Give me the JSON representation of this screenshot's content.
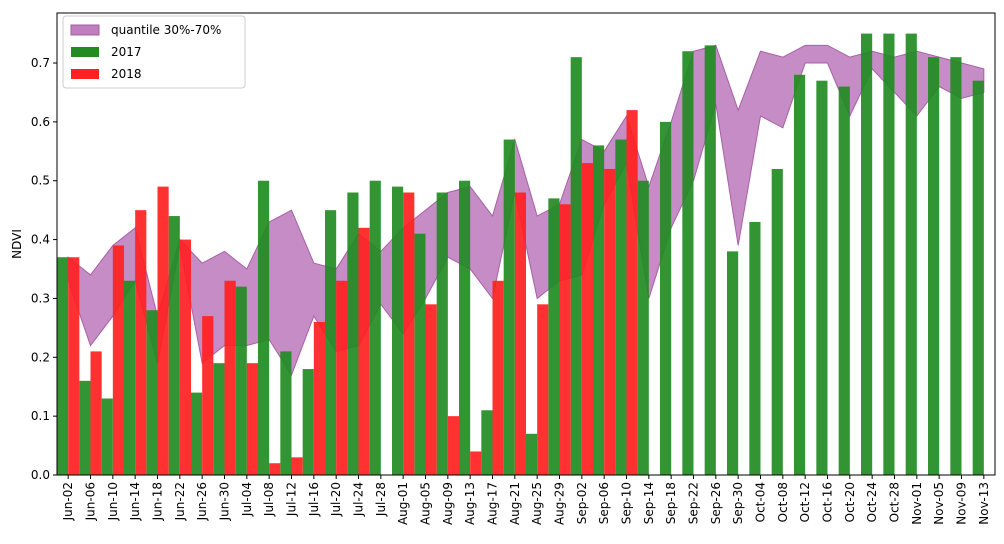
{
  "chart_data": {
    "type": "bar",
    "ylabel": "NDVI",
    "ylim": [
      0,
      0.785
    ],
    "yticks": [
      0.0,
      0.1,
      0.2,
      0.3,
      0.4,
      0.5,
      0.6,
      0.7
    ],
    "legend_position": "upper-left",
    "categories": [
      "Jun-02",
      "Jun-06",
      "Jun-10",
      "Jun-14",
      "Jun-18",
      "Jun-22",
      "Jun-26",
      "Jun-30",
      "Jul-04",
      "Jul-08",
      "Jul-12",
      "Jul-16",
      "Jul-20",
      "Jul-24",
      "Jul-28",
      "Aug-01",
      "Aug-05",
      "Aug-09",
      "Aug-13",
      "Aug-17",
      "Aug-21",
      "Aug-25",
      "Aug-29",
      "Sep-02",
      "Sep-06",
      "Sep-10",
      "Sep-14",
      "Sep-18",
      "Sep-22",
      "Sep-26",
      "Sep-30",
      "Oct-04",
      "Oct-08",
      "Oct-12",
      "Oct-16",
      "Oct-20",
      "Oct-24",
      "Oct-28",
      "Nov-01",
      "Nov-05",
      "Nov-09",
      "Nov-13"
    ],
    "band": {
      "name": "quantile 30%-70%",
      "color": "#bf7fbf",
      "lower": [
        0.33,
        0.22,
        0.27,
        0.33,
        0.19,
        0.39,
        0.19,
        0.22,
        0.22,
        0.23,
        0.17,
        0.27,
        0.21,
        0.22,
        0.29,
        0.24,
        0.3,
        0.37,
        0.35,
        0.3,
        0.48,
        0.3,
        0.33,
        0.34,
        0.46,
        0.53,
        0.3,
        0.42,
        0.5,
        0.63,
        0.39,
        0.61,
        0.59,
        0.7,
        0.7,
        0.61,
        0.69,
        0.65,
        0.61,
        0.66,
        0.64,
        0.65
      ],
      "upper": [
        0.37,
        0.34,
        0.39,
        0.42,
        0.27,
        0.4,
        0.36,
        0.38,
        0.35,
        0.43,
        0.45,
        0.36,
        0.35,
        0.41,
        0.38,
        0.42,
        0.45,
        0.48,
        0.49,
        0.44,
        0.57,
        0.44,
        0.46,
        0.57,
        0.55,
        0.61,
        0.49,
        0.6,
        0.72,
        0.73,
        0.62,
        0.72,
        0.71,
        0.73,
        0.73,
        0.71,
        0.72,
        0.71,
        0.72,
        0.71,
        0.7,
        0.69
      ]
    },
    "series": [
      {
        "name": "2017",
        "color": "#228b22",
        "values": [
          0.37,
          0.16,
          0.13,
          0.33,
          0.28,
          0.44,
          0.14,
          0.19,
          0.32,
          0.5,
          0.21,
          0.18,
          0.45,
          0.48,
          0.5,
          0.49,
          0.41,
          0.48,
          0.5,
          0.11,
          0.57,
          0.07,
          0.47,
          0.71,
          0.56,
          0.57,
          0.5,
          0.6,
          0.72,
          0.73,
          0.38,
          0.43,
          0.52,
          0.68,
          0.67,
          0.66,
          0.75,
          0.75,
          0.75,
          0.71,
          0.71,
          0.67
        ]
      },
      {
        "name": "2018",
        "color": "#ff2020",
        "values": [
          0.37,
          0.21,
          0.39,
          0.45,
          0.49,
          0.4,
          0.27,
          0.33,
          0.19,
          0.02,
          0.03,
          0.26,
          0.33,
          0.42,
          null,
          0.48,
          0.29,
          0.1,
          0.04,
          0.33,
          0.48,
          0.29,
          0.46,
          0.53,
          0.52,
          0.62,
          null,
          null,
          null,
          null,
          null,
          null,
          null,
          null,
          null,
          null,
          null,
          null,
          null,
          null,
          null,
          null
        ]
      }
    ]
  }
}
